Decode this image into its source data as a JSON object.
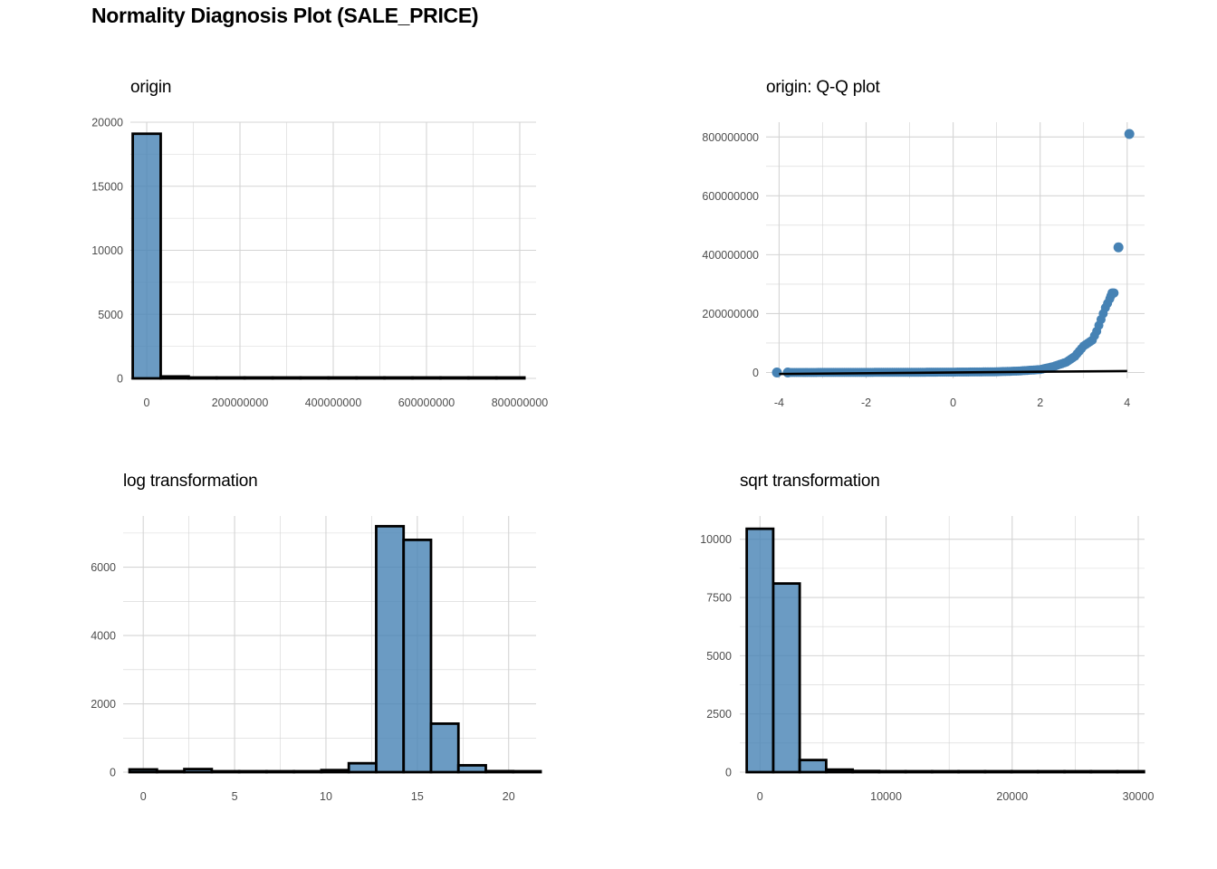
{
  "title": "Normality Diagnosis Plot (SALE_PRICE)",
  "colors": {
    "fill": "#4682b4",
    "outline": "#000000",
    "grid": "#d4d4d4",
    "text": "#4d4d4d"
  },
  "chart_data": [
    {
      "type": "bar",
      "title": "origin",
      "xlabel": "",
      "ylabel": "",
      "xlim": [
        -35000000,
        835000000
      ],
      "ylim": [
        0,
        20000
      ],
      "x_ticks": [
        0,
        200000000,
        400000000,
        600000000,
        800000000
      ],
      "x_tick_labels": [
        "0",
        "200000000",
        "400000000",
        "600000000",
        "800000000"
      ],
      "y_ticks": [
        0,
        5000,
        10000,
        15000,
        20000
      ],
      "y_tick_labels": [
        "0",
        "5000",
        "10000",
        "15000",
        "20000"
      ],
      "bins": [
        [
          -30000000,
          30000000,
          19100
        ],
        [
          30000000,
          90000000,
          150
        ],
        [
          90000000,
          150000000,
          50
        ],
        [
          150000000,
          210000000,
          15
        ],
        [
          210000000,
          270000000,
          8
        ],
        [
          270000000,
          330000000,
          3
        ],
        [
          330000000,
          390000000,
          2
        ],
        [
          390000000,
          450000000,
          2
        ],
        [
          450000000,
          510000000,
          1
        ],
        [
          510000000,
          570000000,
          0
        ],
        [
          570000000,
          630000000,
          0
        ],
        [
          630000000,
          690000000,
          0
        ],
        [
          690000000,
          750000000,
          0
        ],
        [
          750000000,
          810000000,
          1
        ]
      ],
      "grid": true
    },
    {
      "type": "scatter",
      "title": "origin: Q-Q plot",
      "xlabel": "",
      "ylabel": "",
      "xlim": [
        -4.3,
        4.4
      ],
      "ylim": [
        -20000000,
        850000000
      ],
      "x_ticks": [
        -4,
        -2,
        0,
        2,
        4
      ],
      "x_tick_labels": [
        "-4",
        "-2",
        "0",
        "2",
        "4"
      ],
      "y_ticks": [
        0,
        200000000,
        400000000,
        600000000,
        800000000
      ],
      "y_tick_labels": [
        "0",
        "200000000",
        "400000000",
        "600000000",
        "800000000"
      ],
      "qq_curve": [
        [
          -3.8,
          0
        ],
        [
          -3.0,
          200000
        ],
        [
          -2.0,
          500000
        ],
        [
          -1.0,
          800000
        ],
        [
          0,
          1200000
        ],
        [
          1.0,
          2500000
        ],
        [
          1.5,
          5000000
        ],
        [
          2.0,
          10000000
        ],
        [
          2.3,
          20000000
        ],
        [
          2.6,
          35000000
        ],
        [
          2.8,
          55000000
        ],
        [
          3.0,
          90000000
        ],
        [
          3.1,
          100000000
        ],
        [
          3.2,
          110000000
        ],
        [
          3.3,
          140000000
        ],
        [
          3.4,
          180000000
        ],
        [
          3.5,
          220000000
        ],
        [
          3.6,
          250000000
        ],
        [
          3.65,
          270000000
        ],
        [
          3.7,
          270000000
        ]
      ],
      "outliers": [
        [
          -4.05,
          0
        ],
        [
          -3.8,
          0
        ],
        [
          3.8,
          425000000
        ],
        [
          4.05,
          810000000
        ]
      ],
      "qq_line": {
        "x": [
          -4.0,
          4.0
        ],
        "y": [
          -5000000,
          5000000
        ]
      },
      "grid": true
    },
    {
      "type": "bar",
      "title": "log transformation",
      "xlabel": "",
      "ylabel": "",
      "xlim": [
        -1.1,
        21.5
      ],
      "ylim": [
        0,
        7500
      ],
      "x_ticks": [
        0,
        5,
        10,
        15,
        20
      ],
      "x_tick_labels": [
        "0",
        "5",
        "10",
        "15",
        "20"
      ],
      "y_ticks": [
        0,
        2000,
        4000,
        6000
      ],
      "y_tick_labels": [
        "0",
        "2000",
        "4000",
        "6000"
      ],
      "bins": [
        [
          -0.75,
          0.75,
          80
        ],
        [
          0.75,
          2.25,
          20
        ],
        [
          2.25,
          3.75,
          90
        ],
        [
          3.75,
          5.25,
          10
        ],
        [
          5.25,
          6.75,
          10
        ],
        [
          6.75,
          8.25,
          20
        ],
        [
          8.25,
          9.75,
          20
        ],
        [
          9.75,
          11.25,
          60
        ],
        [
          11.25,
          12.75,
          260
        ],
        [
          12.75,
          14.25,
          7200
        ],
        [
          14.25,
          15.75,
          6800
        ],
        [
          15.75,
          17.25,
          1420
        ],
        [
          17.25,
          18.75,
          200
        ],
        [
          18.75,
          20.25,
          30
        ],
        [
          20.25,
          21.75,
          5
        ]
      ],
      "grid": true
    },
    {
      "type": "bar",
      "title": "sqrt transformation",
      "xlabel": "",
      "ylabel": "",
      "xlim": [
        -1600,
        30500
      ],
      "ylim": [
        0,
        11000
      ],
      "x_ticks": [
        0,
        10000,
        20000,
        30000
      ],
      "x_tick_labels": [
        "0",
        "10000",
        "20000",
        "30000"
      ],
      "y_ticks": [
        0,
        2500,
        5000,
        7500,
        10000
      ],
      "y_tick_labels": [
        "0",
        "2500",
        "5000",
        "7500",
        "10000"
      ],
      "bins": [
        [
          -1050,
          1050,
          10450
        ],
        [
          1050,
          3150,
          8100
        ],
        [
          3150,
          5250,
          520
        ],
        [
          5250,
          7350,
          110
        ],
        [
          7350,
          9450,
          50
        ],
        [
          9450,
          11550,
          30
        ],
        [
          11550,
          13650,
          15
        ],
        [
          13650,
          15750,
          8
        ],
        [
          15750,
          17850,
          5
        ],
        [
          17850,
          19950,
          3
        ],
        [
          19950,
          22050,
          2
        ],
        [
          22050,
          24150,
          2
        ],
        [
          24150,
          26250,
          1
        ],
        [
          26250,
          28350,
          1
        ],
        [
          28350,
          30450,
          1
        ]
      ],
      "grid": true
    }
  ]
}
